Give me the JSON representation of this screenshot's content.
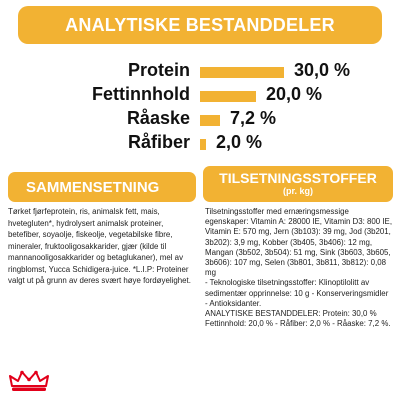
{
  "header": {
    "title": "ANALYTISKE BESTANDDELER"
  },
  "analytics": [
    {
      "label": "Protein",
      "value": "30,0 %",
      "fraction": 1.0
    },
    {
      "label": "Fettinnhold",
      "value": "20,0 %",
      "fraction": 0.67
    },
    {
      "label": "Råaske",
      "value": "7,2 %",
      "fraction": 0.24
    },
    {
      "label": "Råfiber",
      "value": "2,0 %",
      "fraction": 0.067
    }
  ],
  "composition": {
    "title": "SAMMENSETNING",
    "lines": [
      "Tørket fjørfeprotein, ris, animalsk fett, mais,",
      "hvetegluten*, hydrolysert animalsk proteiner,",
      "betefiber, soyaolje, fiskeolje, vegetabilske fibre,",
      "mineraler, fruktooligosakkarider, gjær (kilde til",
      "mannanooligosakkarider og betaglukaner), mel av",
      "ringblomst, Yucca Schidigera-juice. *L.I.P: Proteiner",
      "valgt ut på grunn av deres svært høye fordøyelighet."
    ]
  },
  "additives": {
    "title": "TILSETNINGSSTOFFER",
    "subtitle": "(pr. kg)",
    "lines": [
      "Tilsetningsstoffer med ernæringsmessige",
      "egenskaper: Vitamin A: 28000 IE, Vitamin D3: 800 IE,",
      "Vitamin E: 570 mg, Jern (3b103): 39 mg, Jod (3b201,",
      "3b202): 3,9 mg, Kobber (3b405, 3b406): 12 mg,",
      "Mangan (3b502, 3b504): 51 mg, Sink (3b603, 3b605,",
      "3b606): 107 mg, Selen (3b801, 3b811, 3b812): 0,08 mg",
      "- Teknologiske tilsetningsstoffer: Klinoptilolitt av",
      "sedimentær opprinnelse: 10 g - Konserveringsmidler",
      "- Antioksidanter.",
      "ANALYTISKE BESTANDDELER: Protein: 30,0 %",
      "Fettinnhold: 20,0 % - Råfiber: 2,0 % - Råaske: 7,2 %."
    ]
  },
  "logo": {
    "icon": "royal-canin-crown-icon"
  },
  "colors": {
    "accent": "#f2b233",
    "text": "#111111",
    "logo": "#e2001a"
  }
}
